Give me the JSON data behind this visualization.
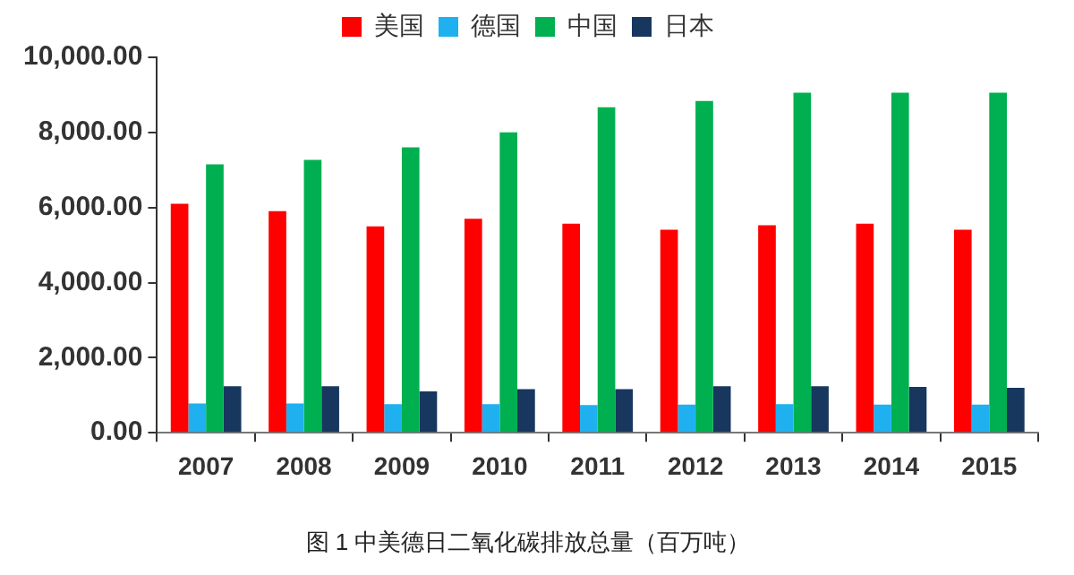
{
  "chart_data": {
    "type": "bar",
    "title": "图 1 中美德日二氧化碳排放总量（百万吨）",
    "categories": [
      "2007",
      "2008",
      "2009",
      "2010",
      "2011",
      "2012",
      "2013",
      "2014",
      "2015"
    ],
    "series": [
      {
        "name": "美国",
        "color": "#ff0000",
        "values": [
          6100,
          5900,
          5500,
          5700,
          5570,
          5410,
          5530,
          5570,
          5410
        ]
      },
      {
        "name": "德国",
        "color": "#1fb0f0",
        "values": [
          780,
          780,
          760,
          760,
          740,
          750,
          760,
          750,
          750
        ]
      },
      {
        "name": "中国",
        "color": "#00b050",
        "values": [
          7150,
          7270,
          7600,
          8000,
          8670,
          8840,
          9060,
          9060,
          9060
        ]
      },
      {
        "name": "日本",
        "color": "#17375e",
        "values": [
          1240,
          1240,
          1100,
          1160,
          1160,
          1240,
          1240,
          1220,
          1200
        ]
      }
    ],
    "ylim": [
      0,
      10000
    ],
    "yticks": [
      {
        "value": 0,
        "label": "0.00"
      },
      {
        "value": 2000,
        "label": "2,000.00"
      },
      {
        "value": 4000,
        "label": "4,000.00"
      },
      {
        "value": 6000,
        "label": "6,000.00"
      },
      {
        "value": 8000,
        "label": "8,000.00"
      },
      {
        "value": 10000,
        "label": "10,000.00"
      }
    ],
    "grid": false,
    "legend": "top"
  }
}
